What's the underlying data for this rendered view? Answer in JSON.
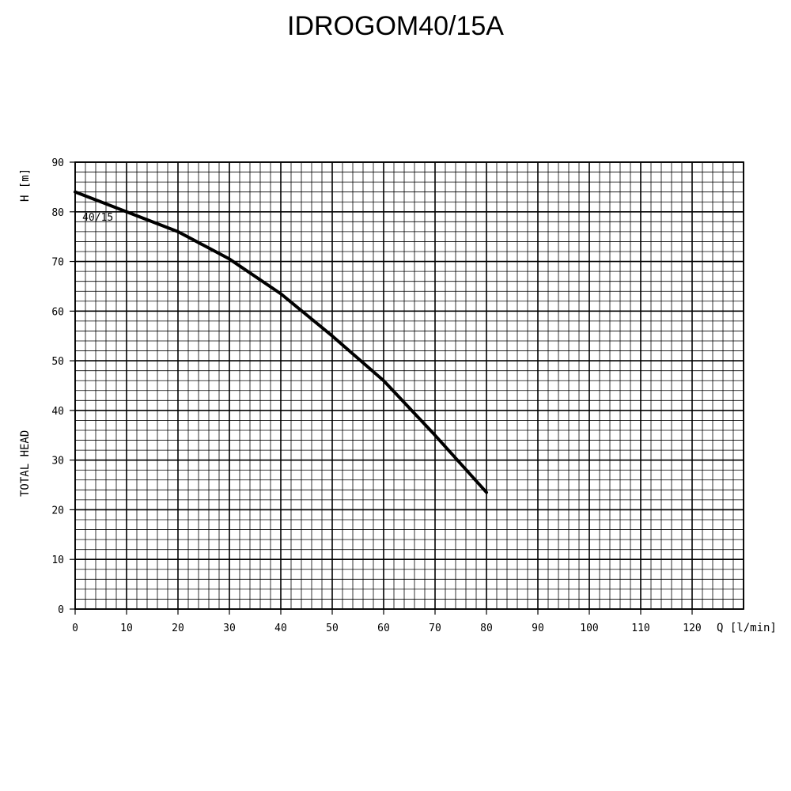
{
  "title": "IDROGOM40/15A",
  "chart_data": {
    "type": "line",
    "title": "IDROGOM40/15A",
    "xlabel": "Q [l/min]",
    "ylabel_unit": "H [m]",
    "ylabel": "TOTAL HEAD",
    "xlim": [
      0,
      130
    ],
    "ylim": [
      0,
      90
    ],
    "x_ticks": [
      0,
      10,
      20,
      30,
      40,
      50,
      60,
      70,
      80,
      90,
      100,
      110,
      120
    ],
    "y_ticks": [
      0,
      10,
      20,
      30,
      40,
      50,
      60,
      70,
      80,
      90
    ],
    "grid": true,
    "series": [
      {
        "name": "40/15",
        "x": [
          0,
          10,
          20,
          30,
          40,
          50,
          60,
          70,
          80
        ],
        "y": [
          84,
          80,
          76,
          70.5,
          63.5,
          55,
          46,
          35,
          23.5
        ]
      }
    ]
  }
}
